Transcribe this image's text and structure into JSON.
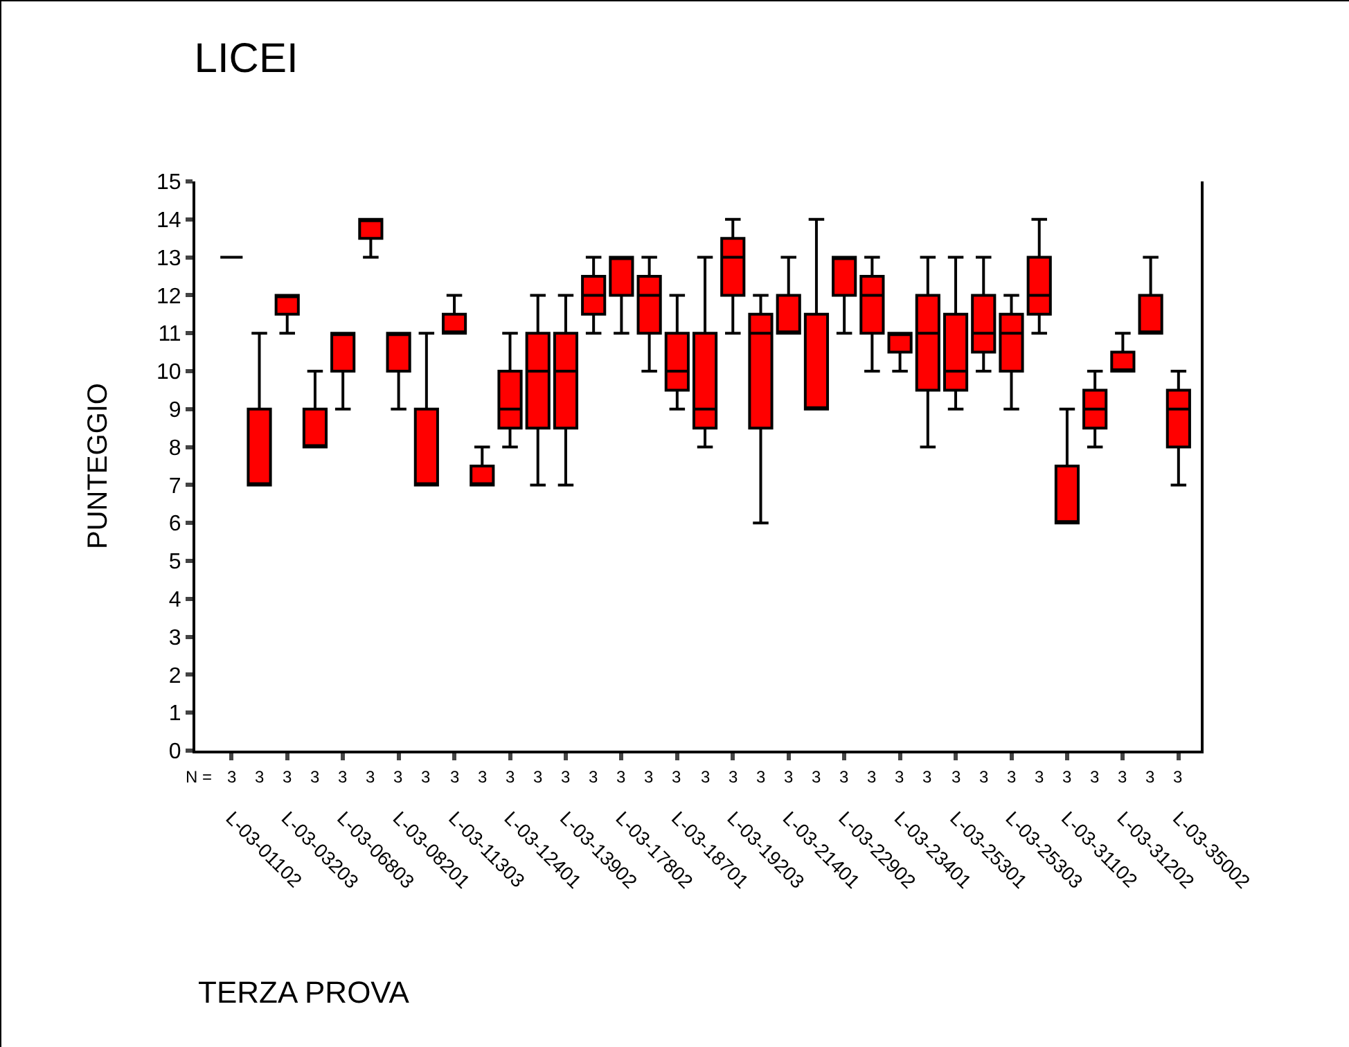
{
  "chart_data": {
    "type": "box",
    "title": "LICEI",
    "xlabel": "TERZA PROVA",
    "ylabel": "PUNTEGGIO",
    "colors": [
      "#000000",
      "#ff0000",
      "#ff0000",
      "#ff0000",
      "#ff0000",
      "#ff0000",
      "#ff0000",
      "#ff0000",
      "#ff0000",
      "#ff0000",
      "#ff0000",
      "#ff0000",
      "#ff0000",
      "#ff0000",
      "#ff0000",
      "#ff0000",
      "#ff0000",
      "#ff0000",
      "#ff0000",
      "#ff0000",
      "#ff0000",
      "#ff0000",
      "#ff0000",
      "#ff0000",
      "#ff0000",
      "#ff0000",
      "#ff0000",
      "#ff0000",
      "#ff0000",
      "#ff0000",
      "#ff0000",
      "#ff0000",
      "#ff0000",
      "#ff0000",
      "#ff0000"
    ],
    "grid": false,
    "categories": [
      "L-03-01102",
      null,
      "L-03-03203",
      null,
      "L-03-06803",
      null,
      "L-03-08201",
      null,
      "L-03-11303",
      null,
      "L-03-12401",
      null,
      "L-03-13902",
      null,
      "L-03-17802",
      null,
      "L-03-18701",
      null,
      "L-03-19203",
      null,
      "L-03-21401",
      null,
      "L-03-22902",
      null,
      "L-03-23401",
      null,
      "L-03-25301",
      null,
      "L-03-25303",
      null,
      "L-03-31102",
      null,
      "L-03-31202",
      null,
      "L-03-35002"
    ],
    "boxes": [
      {
        "low": 13,
        "q1": 13,
        "median": 13,
        "q3": 13,
        "high": 13
      },
      {
        "low": 7,
        "q1": 7,
        "median": 7,
        "q3": 9,
        "high": 11
      },
      {
        "low": 11,
        "q1": 11.5,
        "median": 12,
        "q3": 12,
        "high": 12
      },
      {
        "low": 8,
        "q1": 8,
        "median": 8,
        "q3": 9,
        "high": 10
      },
      {
        "low": 9,
        "q1": 10,
        "median": 11,
        "q3": 11,
        "high": 11
      },
      {
        "low": 13,
        "q1": 13.5,
        "median": 14,
        "q3": 14,
        "high": 14
      },
      {
        "low": 9,
        "q1": 10,
        "median": 11,
        "q3": 11,
        "high": 11
      },
      {
        "low": 7,
        "q1": 7,
        "median": 7,
        "q3": 9,
        "high": 11
      },
      {
        "low": 11,
        "q1": 11,
        "median": 11,
        "q3": 11.5,
        "high": 12
      },
      {
        "low": 7,
        "q1": 7,
        "median": 7,
        "q3": 7.5,
        "high": 8
      },
      {
        "low": 8,
        "q1": 8.5,
        "median": 9,
        "q3": 10,
        "high": 11
      },
      {
        "low": 7,
        "q1": 8.5,
        "median": 10,
        "q3": 11,
        "high": 12
      },
      {
        "low": 7,
        "q1": 8.5,
        "median": 10,
        "q3": 11,
        "high": 12
      },
      {
        "low": 11,
        "q1": 11.5,
        "median": 12,
        "q3": 12.5,
        "high": 13
      },
      {
        "low": 11,
        "q1": 12,
        "median": 13,
        "q3": 13,
        "high": 13
      },
      {
        "low": 10,
        "q1": 11,
        "median": 12,
        "q3": 12.5,
        "high": 13
      },
      {
        "low": 9,
        "q1": 9.5,
        "median": 10,
        "q3": 11,
        "high": 12
      },
      {
        "low": 8,
        "q1": 8.5,
        "median": 9,
        "q3": 11,
        "high": 13
      },
      {
        "low": 11,
        "q1": 12,
        "median": 13,
        "q3": 13.5,
        "high": 14
      },
      {
        "low": 6,
        "q1": 8.5,
        "median": 11,
        "q3": 11.5,
        "high": 12
      },
      {
        "low": 11,
        "q1": 11,
        "median": 11,
        "q3": 12,
        "high": 13
      },
      {
        "low": 9,
        "q1": 9,
        "median": 9,
        "q3": 11.5,
        "high": 14
      },
      {
        "low": 11,
        "q1": 12,
        "median": 13,
        "q3": 13,
        "high": 13
      },
      {
        "low": 10,
        "q1": 11,
        "median": 12,
        "q3": 12.5,
        "high": 13
      },
      {
        "low": 10,
        "q1": 10.5,
        "median": 11,
        "q3": 11,
        "high": 11
      },
      {
        "low": 8,
        "q1": 9.5,
        "median": 11,
        "q3": 12,
        "high": 13
      },
      {
        "low": 9,
        "q1": 9.5,
        "median": 10,
        "q3": 11.5,
        "high": 13
      },
      {
        "low": 10,
        "q1": 10.5,
        "median": 11,
        "q3": 12,
        "high": 13
      },
      {
        "low": 9,
        "q1": 10,
        "median": 11,
        "q3": 11.5,
        "high": 12
      },
      {
        "low": 11,
        "q1": 11.5,
        "median": 12,
        "q3": 13,
        "high": 14
      },
      {
        "low": 6,
        "q1": 6,
        "median": 6,
        "q3": 7.5,
        "high": 9
      },
      {
        "low": 8,
        "q1": 8.5,
        "median": 9,
        "q3": 9.5,
        "high": 10
      },
      {
        "low": 10,
        "q1": 10,
        "median": 10,
        "q3": 10.5,
        "high": 11
      },
      {
        "low": 11,
        "q1": 11,
        "median": 11,
        "q3": 12,
        "high": 13
      },
      {
        "low": 7,
        "q1": 8,
        "median": 9,
        "q3": 9.5,
        "high": 10
      }
    ],
    "ylim": [
      0,
      15
    ],
    "yticks": [
      0,
      1,
      2,
      3,
      4,
      5,
      6,
      7,
      8,
      9,
      10,
      11,
      12,
      13,
      14,
      15
    ],
    "annotations": [
      "N =",
      "3",
      "3",
      "3",
      "3",
      "3",
      "3",
      "3",
      "3",
      "3",
      "3",
      "3",
      "3",
      "3",
      "3",
      "3",
      "3",
      "3",
      "3",
      "3",
      "3",
      "3",
      "3",
      "3",
      "3",
      "3",
      "3",
      "3",
      "3",
      "3",
      "3",
      "3",
      "3",
      "3",
      "3",
      "3"
    ]
  }
}
